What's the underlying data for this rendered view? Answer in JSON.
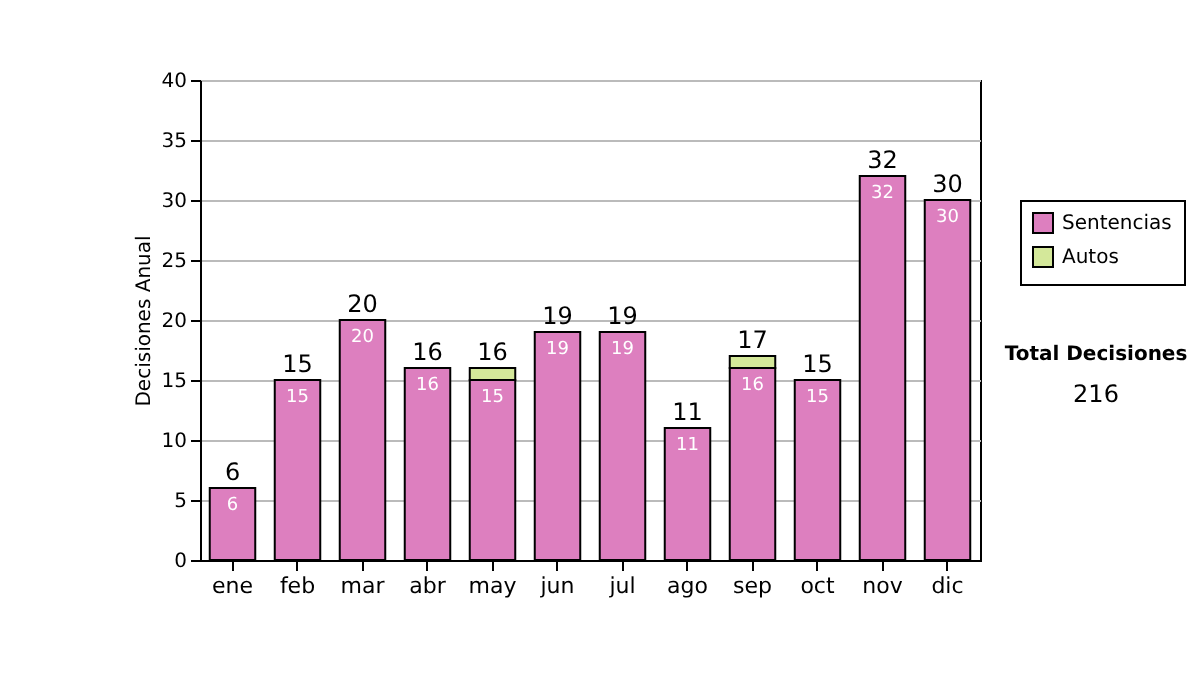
{
  "chart_data": {
    "type": "bar",
    "stacked": true,
    "ylabel": "Decisiones Anual",
    "categories": [
      "ene",
      "feb",
      "mar",
      "abr",
      "may",
      "jun",
      "jul",
      "ago",
      "sep",
      "oct",
      "nov",
      "dic"
    ],
    "series": [
      {
        "name": "Sentencias",
        "color": "#dd7fbf",
        "values": [
          6,
          15,
          20,
          16,
          15,
          19,
          19,
          11,
          16,
          15,
          32,
          30
        ],
        "value_labels": [
          "6",
          "15",
          "20",
          "16",
          "15",
          "19",
          "19",
          "11",
          "16",
          "15",
          "32",
          "30"
        ]
      },
      {
        "name": "Autos",
        "color": "#d4e89a",
        "values": [
          0,
          0,
          0,
          0,
          1,
          0,
          0,
          0,
          1,
          0,
          0,
          0
        ]
      }
    ],
    "totals": [
      "6",
      "15",
      "20",
      "16",
      "16",
      "19",
      "19",
      "11",
      "17",
      "15",
      "32",
      "30"
    ],
    "ylim": [
      0,
      40
    ],
    "yticks": [
      0,
      5,
      10,
      15,
      20,
      25,
      30,
      35,
      40
    ],
    "grid": "y",
    "legend": "right",
    "annotations": [
      "Total Decisiones",
      "216"
    ]
  }
}
